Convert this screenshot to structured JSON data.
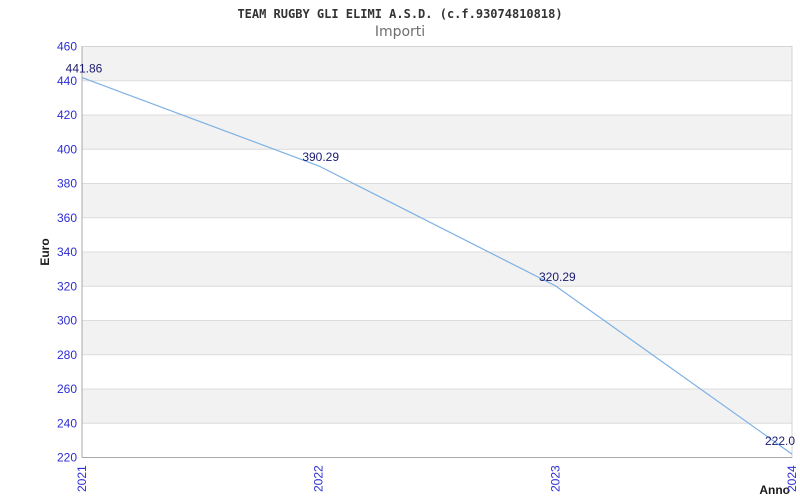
{
  "chart_data": {
    "type": "line",
    "title": "TEAM RUGBY GLI ELIMI A.S.D. (c.f.93074810818)",
    "subtitle": "Importi",
    "xlabel": "Anno",
    "ylabel": "Euro",
    "categories": [
      "2021",
      "2022",
      "2023",
      "2024"
    ],
    "values": [
      441.86,
      390.29,
      320.29,
      222.0
    ],
    "point_labels": [
      "441.86",
      "390.29",
      "320.29",
      "222.0"
    ],
    "ylim": [
      220,
      460
    ],
    "ytick_step": 20,
    "grid": "horizontal-bands",
    "legend": "none",
    "colors": {
      "line": "#7db1e4",
      "tick_label": "#2d2dd2",
      "point_label": "#1b1b70",
      "band": "#f2f2f2",
      "gridline": "#dcdcdc",
      "border": "#d4d4d4",
      "axis": "#a8a8a8",
      "title": "#333333",
      "subtitle": "#6e6e6e",
      "axis_title": "#1a1a1a"
    }
  }
}
